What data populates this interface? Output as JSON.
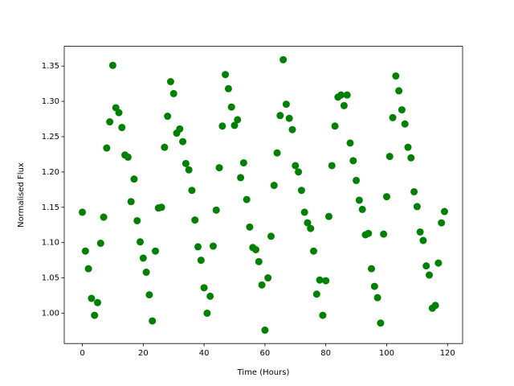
{
  "chart_data": {
    "type": "scatter",
    "xlabel": "Time (Hours)",
    "ylabel": "Normalised Flux",
    "color": "#008000",
    "x": [
      0,
      1,
      2,
      3,
      4,
      5,
      6,
      7,
      8,
      9,
      10,
      11,
      12,
      13,
      14,
      15,
      16,
      17,
      18,
      19,
      20,
      21,
      22,
      23,
      24,
      25,
      26,
      27,
      28,
      29,
      30,
      31,
      32,
      33,
      34,
      35,
      36,
      37,
      38,
      39,
      40,
      41,
      42,
      43,
      44,
      45,
      46,
      47,
      48,
      49,
      50,
      51,
      52,
      53,
      54,
      55,
      56,
      57,
      58,
      59,
      60,
      61,
      62,
      63,
      64,
      65,
      66,
      67,
      68,
      69,
      70,
      71,
      72,
      73,
      74,
      75,
      76,
      77,
      78,
      79,
      80,
      81,
      82,
      83,
      84,
      85,
      86,
      87,
      88,
      89,
      90,
      91,
      92,
      93,
      94,
      95,
      96,
      97,
      98,
      99,
      100,
      101,
      102,
      103,
      104,
      105,
      106,
      107,
      108,
      109,
      110,
      111,
      112,
      113,
      114,
      115,
      116,
      117,
      118,
      119
    ],
    "values": [
      1.143,
      1.088,
      1.063,
      1.021,
      0.997,
      1.015,
      1.099,
      1.136,
      1.234,
      1.271,
      1.351,
      1.291,
      1.284,
      1.263,
      1.224,
      1.221,
      1.158,
      1.19,
      1.131,
      1.101,
      1.078,
      1.058,
      1.026,
      0.989,
      1.088,
      1.149,
      1.15,
      1.235,
      1.279,
      1.328,
      1.311,
      1.255,
      1.261,
      1.243,
      1.212,
      1.203,
      1.174,
      1.132,
      1.094,
      1.075,
      1.036,
      1.0,
      1.024,
      1.095,
      1.146,
      1.206,
      1.265,
      1.338,
      1.318,
      1.292,
      1.266,
      1.274,
      1.192,
      1.213,
      1.161,
      1.122,
      1.093,
      1.09,
      1.073,
      1.04,
      0.976,
      1.05,
      1.109,
      1.181,
      1.227,
      1.28,
      1.359,
      1.296,
      1.276,
      1.26,
      1.209,
      1.2,
      1.174,
      1.143,
      1.128,
      1.12,
      1.088,
      1.027,
      1.047,
      0.997,
      1.046,
      1.137,
      1.209,
      1.265,
      1.306,
      1.309,
      1.294,
      1.309,
      1.241,
      1.216,
      1.188,
      1.16,
      1.147,
      1.111,
      1.113,
      1.063,
      1.038,
      1.022,
      0.986,
      1.112,
      1.165,
      1.222,
      1.277,
      1.336,
      1.315,
      1.288,
      1.268,
      1.235,
      1.22,
      1.172,
      1.151,
      1.115,
      1.103,
      1.067,
      1.054,
      1.007,
      1.011,
      1.071,
      1.128,
      1.144
    ],
    "xlim": [
      -5.95,
      124.95
    ],
    "ylim": [
      0.957,
      1.378
    ],
    "xticks": [
      0,
      20,
      40,
      60,
      80,
      100,
      120
    ],
    "yticks": [
      {
        "value": 1.0,
        "label": "1.00"
      },
      1.05,
      {
        "value": 1.1,
        "label": "1.10"
      },
      1.15,
      {
        "value": 1.2,
        "label": "1.20"
      },
      1.25,
      {
        "value": 1.3,
        "label": "1.30"
      },
      1.35
    ]
  }
}
